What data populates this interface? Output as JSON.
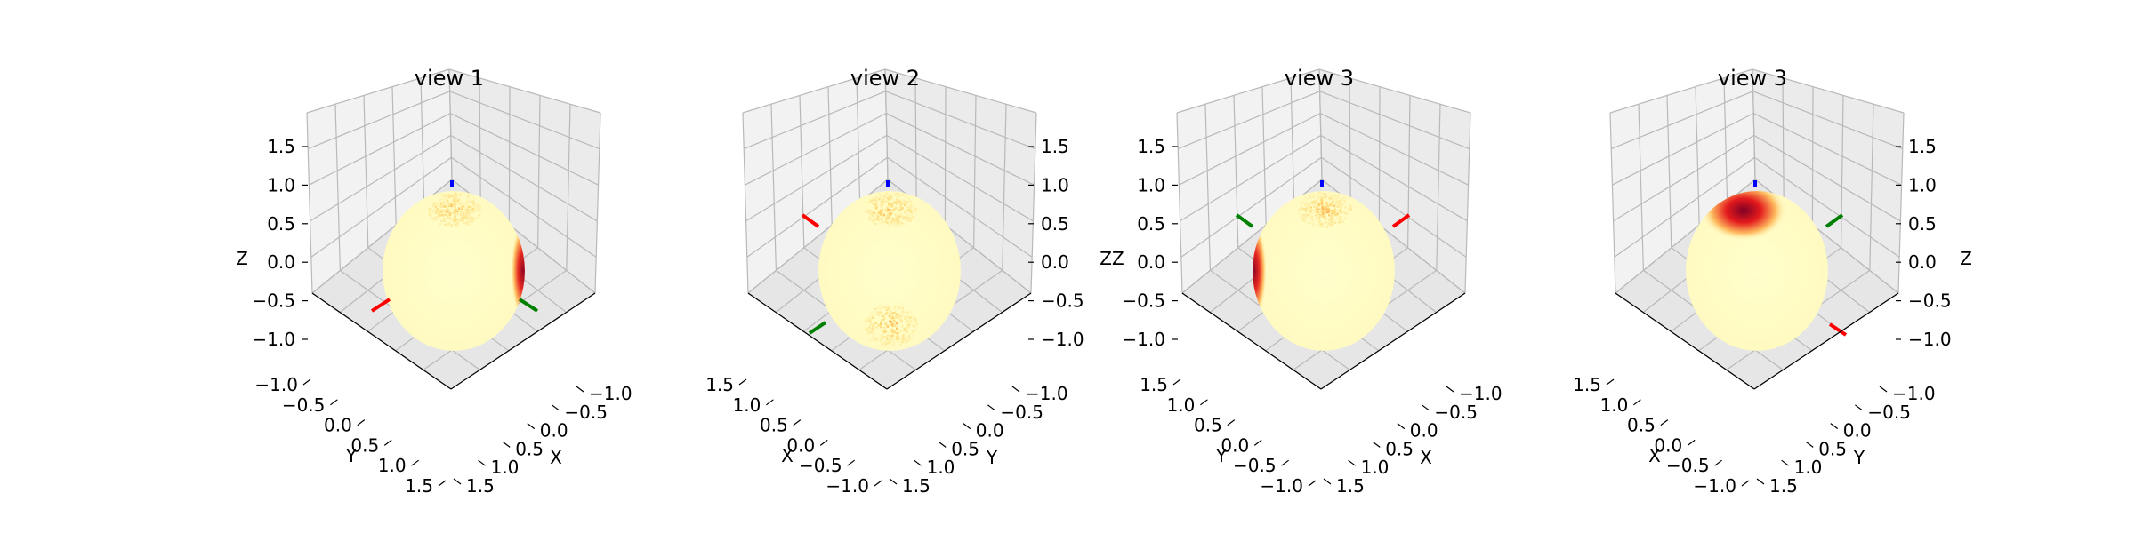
{
  "chart_data": [
    {
      "type": "3d-sphere-heatmap",
      "title": "view 1",
      "x_label": "X",
      "y_label": "Y",
      "z_label": "Z",
      "x_ticks": [
        "−1.0",
        "−0.5",
        "0.0",
        "0.5",
        "1.0",
        "1.5"
      ],
      "y_ticks": [
        "−1.0",
        "−0.5",
        "0.0",
        "0.5",
        "1.0",
        "1.5"
      ],
      "z_ticks": [
        "−1.0",
        "−0.5",
        "0.0",
        "0.5",
        "1.0",
        "1.5"
      ],
      "xlim": [
        -1.0,
        1.5
      ],
      "ylim": [
        -1.0,
        1.5
      ],
      "zlim": [
        -1.0,
        1.5
      ],
      "colormap": "YlOrRd",
      "hotspots": [
        {
          "location": "top",
          "intensity": 0.35,
          "style": "speckled"
        },
        {
          "location": "right-edge",
          "intensity": 0.95,
          "style": "solid"
        }
      ],
      "axis_markers": [
        {
          "axis": "x",
          "color": "#ff0000",
          "position": "lower-left"
        },
        {
          "axis": "y",
          "color": "#008000",
          "position": "lower-right"
        },
        {
          "axis": "z",
          "color": "#0000ff",
          "position": "top"
        }
      ]
    },
    {
      "type": "3d-sphere-heatmap",
      "title": "view 2",
      "x_label": "X",
      "y_label": "Y",
      "z_label": "",
      "x_ticks": [
        "1.5",
        "1.0",
        "0.5",
        "0.0",
        "−0.5",
        "−1.0"
      ],
      "y_ticks": [
        "−1.0",
        "−0.5",
        "0.0",
        "0.5",
        "1.0",
        "1.5"
      ],
      "z_ticks": [
        "−1.0",
        "−0.5",
        "0.0",
        "0.5",
        "1.0",
        "1.5"
      ],
      "xlim": [
        -1.0,
        1.5
      ],
      "ylim": [
        -1.0,
        1.5
      ],
      "zlim": [
        -1.0,
        1.5
      ],
      "colormap": "YlOrRd",
      "hotspots": [
        {
          "location": "top",
          "intensity": 0.35,
          "style": "speckled"
        },
        {
          "location": "bottom",
          "intensity": 0.35,
          "style": "speckled"
        }
      ],
      "axis_markers": [
        {
          "axis": "x",
          "color": "#ff0000",
          "position": "upper-left"
        },
        {
          "axis": "y",
          "color": "#008000",
          "position": "lower-left"
        },
        {
          "axis": "z",
          "color": "#0000ff",
          "position": "top"
        }
      ]
    },
    {
      "type": "3d-sphere-heatmap",
      "title": "view 3",
      "x_label": "X",
      "y_label": "Y",
      "z_label": "ZZ",
      "x_ticks": [
        "−1.0",
        "−0.5",
        "0.0",
        "0.5",
        "1.0",
        "1.5"
      ],
      "y_ticks": [
        "1.5",
        "1.0",
        "0.5",
        "0.0",
        "−0.5",
        "−1.0"
      ],
      "z_ticks": [
        "−1.0",
        "−0.5",
        "0.0",
        "0.5",
        "1.0",
        "1.5"
      ],
      "xlim": [
        -1.0,
        1.5
      ],
      "ylim": [
        -1.0,
        1.5
      ],
      "zlim": [
        -1.0,
        1.5
      ],
      "colormap": "YlOrRd",
      "hotspots": [
        {
          "location": "top",
          "intensity": 0.35,
          "style": "speckled"
        },
        {
          "location": "left-edge",
          "intensity": 0.95,
          "style": "solid"
        }
      ],
      "axis_markers": [
        {
          "axis": "x",
          "color": "#ff0000",
          "position": "upper-right"
        },
        {
          "axis": "y",
          "color": "#008000",
          "position": "upper-left"
        },
        {
          "axis": "z",
          "color": "#0000ff",
          "position": "top"
        }
      ]
    },
    {
      "type": "3d-sphere-heatmap",
      "title": "view 3",
      "x_label": "X",
      "y_label": "Y",
      "z_label": "Z",
      "x_ticks": [
        "1.5",
        "1.0",
        "0.5",
        "0.0",
        "−0.5",
        "−1.0"
      ],
      "y_ticks": [
        "−1.0",
        "−0.5",
        "0.0",
        "0.5",
        "1.0",
        "1.5"
      ],
      "z_ticks": [
        "−1.0",
        "−0.5",
        "0.0",
        "0.5",
        "1.0",
        "1.5"
      ],
      "xlim": [
        -1.0,
        1.5
      ],
      "ylim": [
        -1.0,
        1.5
      ],
      "zlim": [
        -1.0,
        1.5
      ],
      "colormap": "YlOrRd",
      "hotspots": [
        {
          "location": "top-left",
          "intensity": 1.0,
          "style": "solid"
        }
      ],
      "axis_markers": [
        {
          "axis": "x",
          "color": "#ff0000",
          "position": "lower-right"
        },
        {
          "axis": "y",
          "color": "#008000",
          "position": "upper-right"
        },
        {
          "axis": "z",
          "color": "#0000ff",
          "position": "top"
        }
      ]
    }
  ]
}
